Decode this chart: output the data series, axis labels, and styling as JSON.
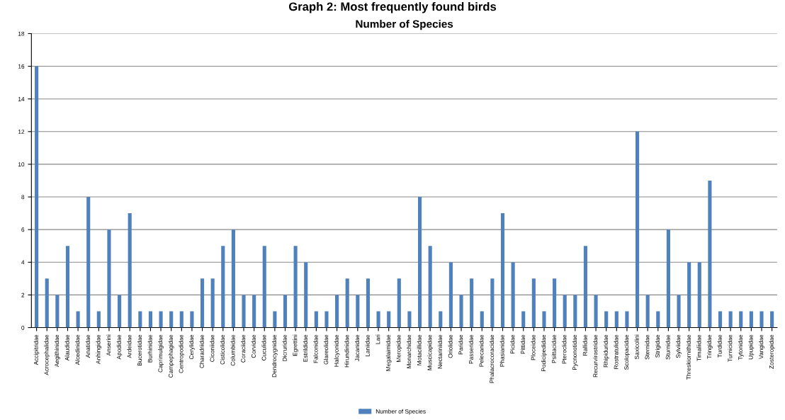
{
  "chart_data": {
    "type": "bar",
    "title": "Graph 2: Most frequently found birds",
    "subtitle": "Number of Species",
    "categories": [
      "Accipitridae",
      "Acrocephalidae",
      "Aegithinidae",
      "Alaudidae",
      "Alcedinidae",
      "Anatidae",
      "Anhingidae",
      "Anserini",
      "Apodidae",
      "Ardeidae",
      "Bucerotidae",
      "Burhinidae",
      "Caprimulgidae",
      "Campephagidae",
      "Centropodidae",
      "Cerylidae",
      "Charadriidae",
      "Ciconiidae",
      "Cisticolidae",
      "Columbidae",
      "Coraciidae",
      "Corvidae",
      "Cuculidae",
      "Dendrocygnidae",
      "Dicruridae",
      "Egrettini",
      "Estrildidae",
      "Falconidae",
      "Glareolidae",
      "Halcyonidae",
      "Hirundinidae",
      "Jacanidae",
      "Laniidae",
      "Lari",
      "Megalaimidae",
      "Meropidae",
      "Monarchidae",
      "Motacillidae",
      "Muscicapidae",
      "Nectariniidae",
      "Oriolidae",
      "Paridae",
      "Passeridae",
      "Pelecanidae",
      "Phalacrocoracidae",
      "Phasianidae",
      "Picidae",
      "Pittidae",
      "Ploceidae",
      "Podicipedidae",
      "Psittacidae",
      "Pteroclidae",
      "Pycnonotidae",
      "Rallidae",
      "Recurvirostridae",
      "Rhipiduridae",
      "Rostratulidae",
      "Scolopacidae",
      "Saxicolini",
      "Sternidae",
      "Strigidae",
      "Sturnidae",
      "Sylviidae",
      "Threskiornithidae",
      "Timaliidae",
      "Tringidae",
      "Turdidae",
      "Turnicidae",
      "Tytonidae",
      "Upupidae",
      "Vangidae",
      "Zosteropidae"
    ],
    "series": [
      {
        "name": "Number of Species",
        "color": "#4f81bd",
        "values": [
          16,
          3,
          2,
          5,
          1,
          8,
          1,
          6,
          2,
          7,
          1,
          1,
          1,
          1,
          1,
          1,
          3,
          3,
          5,
          6,
          2,
          2,
          5,
          1,
          2,
          5,
          4,
          1,
          1,
          2,
          3,
          2,
          3,
          1,
          1,
          3,
          1,
          8,
          5,
          1,
          4,
          2,
          3,
          1,
          3,
          7,
          4,
          1,
          3,
          1,
          3,
          2,
          2,
          5,
          2,
          1,
          1,
          1,
          12,
          2,
          1,
          6,
          2,
          4,
          4,
          9,
          1,
          1,
          1,
          1,
          1,
          1
        ]
      }
    ],
    "ylim": [
      0,
      18
    ],
    "yticks": [
      0,
      2,
      4,
      6,
      8,
      10,
      12,
      14,
      16,
      18
    ],
    "grid": "y",
    "legend": "bottom"
  }
}
